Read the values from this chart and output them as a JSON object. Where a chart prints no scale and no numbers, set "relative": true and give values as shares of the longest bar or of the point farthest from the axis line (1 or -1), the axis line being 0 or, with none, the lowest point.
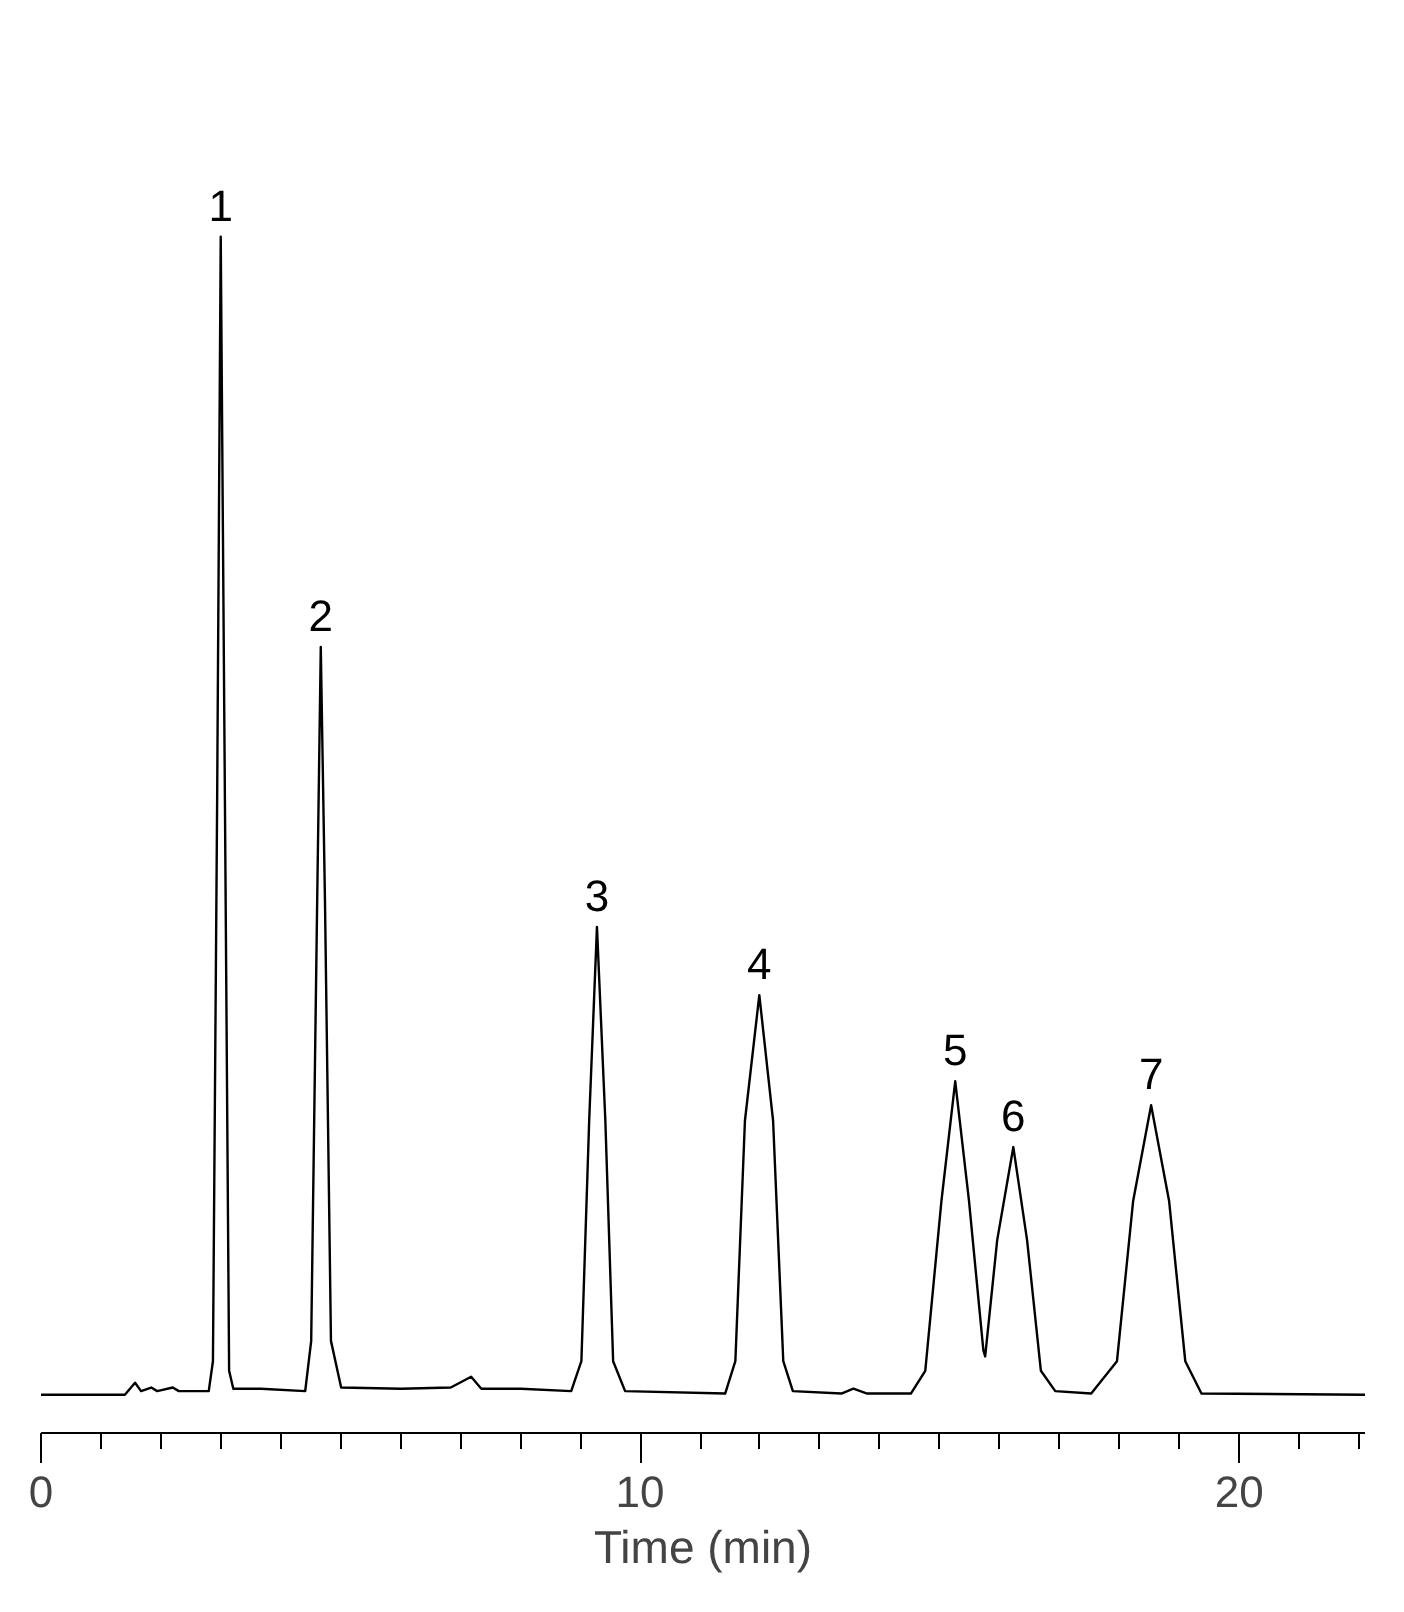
{
  "chart_data": {
    "type": "line",
    "relative": true,
    "xlabel": "Time (min)",
    "grid": false,
    "xlim": [
      0,
      22.1
    ],
    "xticks": [
      0,
      {
        "value": 1,
        "label": null
      },
      {
        "value": 2,
        "label": null
      },
      {
        "value": 3,
        "label": null
      },
      {
        "value": 4,
        "label": null
      },
      {
        "value": 5,
        "label": null
      },
      {
        "value": 6,
        "label": null
      },
      {
        "value": 7,
        "label": null
      },
      {
        "value": 8,
        "label": null
      },
      {
        "value": 9,
        "label": null
      },
      10,
      {
        "value": 11,
        "label": null
      },
      {
        "value": 12,
        "label": null
      },
      {
        "value": 13,
        "label": null
      },
      {
        "value": 14,
        "label": null
      },
      {
        "value": 15,
        "label": null
      },
      {
        "value": 16,
        "label": null
      },
      {
        "value": 17,
        "label": null
      },
      {
        "value": 18,
        "label": null
      },
      {
        "value": 19,
        "label": null
      },
      20,
      {
        "value": 21,
        "label": null
      },
      {
        "value": 22,
        "label": null
      }
    ],
    "x": [
      0,
      1.4,
      1.57,
      1.67,
      1.84,
      1.94,
      2.2,
      2.3,
      2.8,
      2.87,
      2.94,
      3.0,
      3.07,
      3.14,
      3.21,
      3.67,
      4.41,
      4.51,
      4.61,
      4.67,
      4.74,
      4.84,
      5.01,
      6.01,
      6.84,
      7.18,
      7.35,
      8.01,
      8.85,
      9.02,
      9.15,
      9.28,
      9.42,
      9.55,
      9.75,
      11.42,
      11.59,
      11.75,
      11.99,
      12.22,
      12.39,
      12.55,
      13.36,
      13.56,
      13.79,
      14.52,
      14.76,
      15.03,
      15.26,
      15.49,
      15.73,
      15.76,
      15.96,
      16.23,
      16.46,
      16.69,
      16.93,
      17.53,
      17.96,
      18.23,
      18.53,
      18.83,
      19.1,
      19.37,
      22.1
    ],
    "series": [
      {
        "color": "#000000",
        "values": [
          0.032,
          0.032,
          0.042,
          0.035,
          0.038,
          0.035,
          0.038,
          0.035,
          0.035,
          0.06,
          0.528,
          1.0,
          0.528,
          0.052,
          0.037,
          0.037,
          0.035,
          0.077,
          0.445,
          0.657,
          0.445,
          0.077,
          0.038,
          0.037,
          0.038,
          0.047,
          0.037,
          0.037,
          0.035,
          0.06,
          0.261,
          0.423,
          0.261,
          0.06,
          0.035,
          0.033,
          0.06,
          0.261,
          0.366,
          0.261,
          0.06,
          0.035,
          0.033,
          0.037,
          0.033,
          0.033,
          0.052,
          0.194,
          0.294,
          0.194,
          0.069,
          0.064,
          0.161,
          0.239,
          0.161,
          0.052,
          0.035,
          0.033,
          0.06,
          0.194,
          0.274,
          0.194,
          0.06,
          0.033,
          0.032
        ]
      }
    ],
    "annotations": [
      {
        "text": "1",
        "x": 3.0,
        "y": 1.0
      },
      {
        "text": "2",
        "x": 4.67,
        "y": 0.657
      },
      {
        "text": "3",
        "x": 9.28,
        "y": 0.423
      },
      {
        "text": "4",
        "x": 11.99,
        "y": 0.366
      },
      {
        "text": "5",
        "x": 15.26,
        "y": 0.294
      },
      {
        "text": "6",
        "x": 16.23,
        "y": 0.239
      },
      {
        "text": "7",
        "x": 18.53,
        "y": 0.274
      }
    ]
  }
}
